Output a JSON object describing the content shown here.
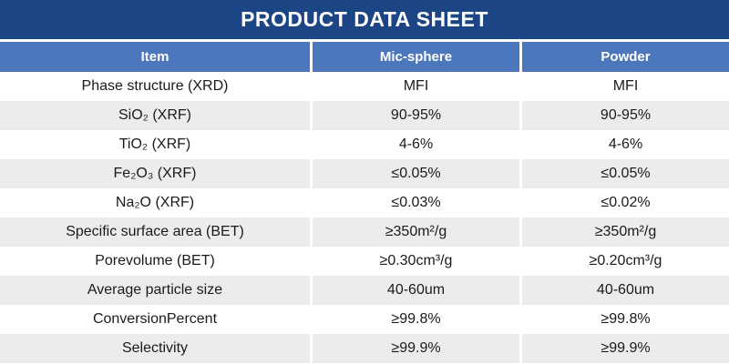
{
  "title": "PRODUCT DATA SHEET",
  "colors": {
    "title_bar": "#1C4586",
    "header_row": "#4C77BC",
    "row_alt": "#ECECEC",
    "body_text": "#1A1A1A",
    "header_text": "#FFFFFF"
  },
  "table": {
    "columns": [
      "Item",
      "Mic-sphere",
      "Powder"
    ],
    "rows": [
      {
        "item": "Phase structure (XRD)",
        "mic_sphere": "MFI",
        "powder": "MFI"
      },
      {
        "item": "SiO₂ (XRF)",
        "mic_sphere": "90-95%",
        "powder": "90-95%"
      },
      {
        "item": "TiO₂ (XRF)",
        "mic_sphere": "4-6%",
        "powder": "4-6%"
      },
      {
        "item": "Fe₂O₃ (XRF)",
        "mic_sphere": "≤0.05%",
        "powder": "≤0.05%"
      },
      {
        "item": "Na₂O (XRF)",
        "mic_sphere": "≤0.03%",
        "powder": "≤0.02%"
      },
      {
        "item": "Specific surface area (BET)",
        "mic_sphere": "≥350m²/g",
        "powder": "≥350m²/g"
      },
      {
        "item": "Porevolume (BET)",
        "mic_sphere": "≥0.30cm³/g",
        "powder": "≥0.20cm³/g"
      },
      {
        "item": "Average particle size",
        "mic_sphere": "40-60um",
        "powder": "40-60um"
      },
      {
        "item": "ConversionPercent",
        "mic_sphere": "≥99.8%",
        "powder": "≥99.8%"
      },
      {
        "item": "Selectivity",
        "mic_sphere": "≥99.9%",
        "powder": "≥99.9%"
      }
    ]
  }
}
